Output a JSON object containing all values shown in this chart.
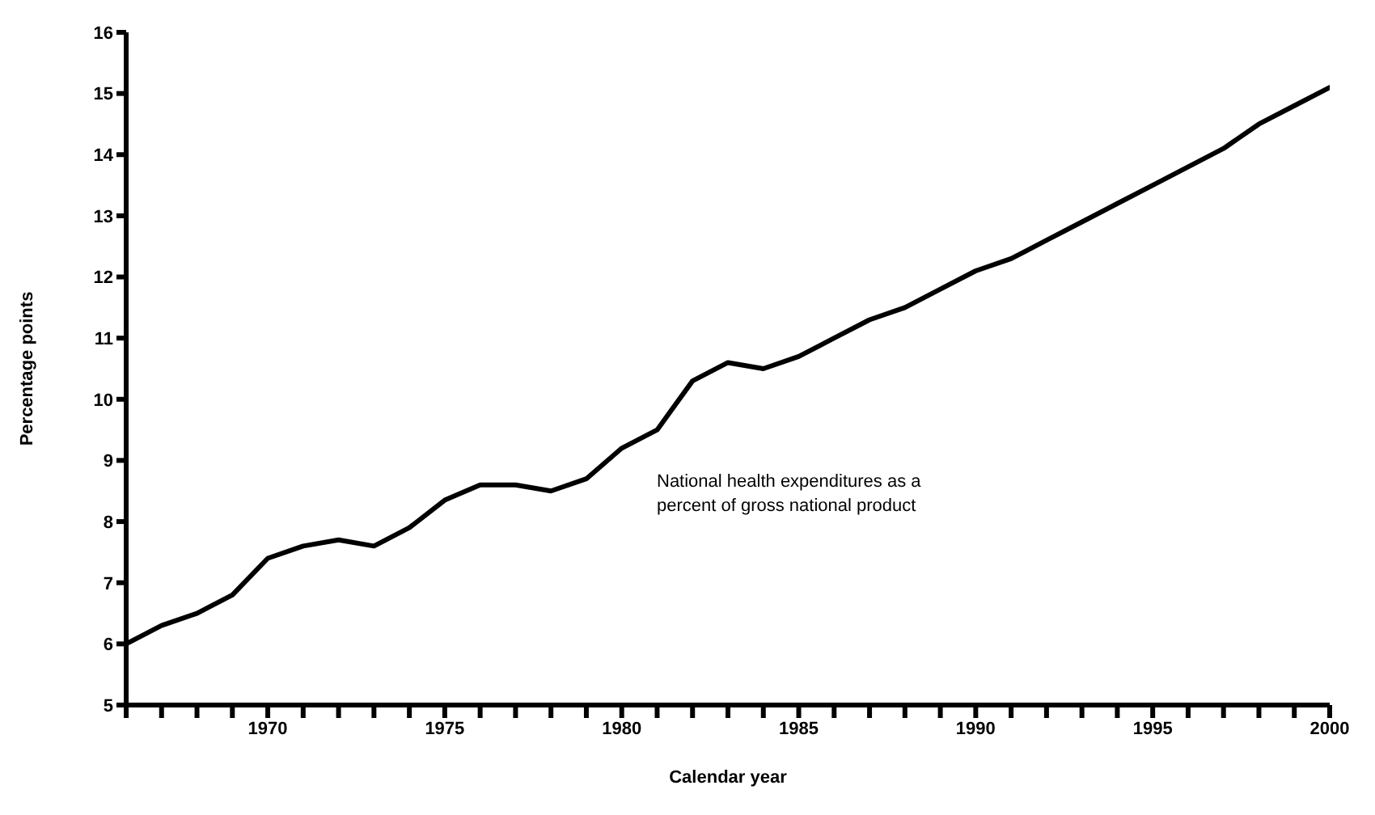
{
  "chart_data": {
    "type": "line",
    "xlabel": "Calendar year",
    "ylabel": "Percentage points",
    "annotations": [
      "National health expenditures as a\npercent of gross national product"
    ],
    "x": [
      1966,
      1967,
      1968,
      1969,
      1970,
      1971,
      1972,
      1973,
      1974,
      1975,
      1976,
      1977,
      1978,
      1979,
      1980,
      1981,
      1982,
      1983,
      1984,
      1985,
      1986,
      1987,
      1988,
      1989,
      1990,
      1991,
      1992,
      1993,
      1994,
      1995,
      1996,
      1997,
      1998,
      1999,
      2000
    ],
    "series": [
      {
        "color": "#000000",
        "values": [
          6.0,
          6.3,
          6.5,
          6.8,
          7.4,
          7.6,
          7.7,
          7.6,
          7.9,
          8.35,
          8.6,
          8.6,
          8.5,
          8.7,
          9.2,
          9.5,
          10.3,
          10.6,
          10.5,
          10.7,
          11.0,
          11.3,
          11.5,
          11.8,
          12.1,
          12.3,
          12.6,
          12.9,
          13.2,
          13.5,
          13.8,
          14.1,
          14.5,
          14.8,
          15.1
        ]
      }
    ],
    "xlim": [
      1966,
      2000
    ],
    "xticks": [
      {
        "value": 1966,
        "label": null
      },
      {
        "value": 1967,
        "label": null
      },
      {
        "value": 1968,
        "label": null
      },
      {
        "value": 1969,
        "label": null
      },
      1970,
      {
        "value": 1971,
        "label": null
      },
      {
        "value": 1972,
        "label": null
      },
      {
        "value": 1973,
        "label": null
      },
      {
        "value": 1974,
        "label": null
      },
      1975,
      {
        "value": 1976,
        "label": null
      },
      {
        "value": 1977,
        "label": null
      },
      {
        "value": 1978,
        "label": null
      },
      {
        "value": 1979,
        "label": null
      },
      1980,
      {
        "value": 1981,
        "label": null
      },
      {
        "value": 1982,
        "label": null
      },
      {
        "value": 1983,
        "label": null
      },
      {
        "value": 1984,
        "label": null
      },
      1985,
      {
        "value": 1986,
        "label": null
      },
      {
        "value": 1987,
        "label": null
      },
      {
        "value": 1988,
        "label": null
      },
      {
        "value": 1989,
        "label": null
      },
      1990,
      {
        "value": 1991,
        "label": null
      },
      {
        "value": 1992,
        "label": null
      },
      {
        "value": 1993,
        "label": null
      },
      {
        "value": 1994,
        "label": null
      },
      1995,
      {
        "value": 1996,
        "label": null
      },
      {
        "value": 1997,
        "label": null
      },
      {
        "value": 1998,
        "label": null
      },
      {
        "value": 1999,
        "label": null
      },
      2000
    ],
    "ylim": [
      5,
      16
    ],
    "yticks": [
      5,
      6,
      7,
      8,
      9,
      10,
      11,
      12,
      13,
      14,
      15,
      16
    ],
    "grid": false,
    "legend": false,
    "marker": "none",
    "line_style": "solid"
  }
}
